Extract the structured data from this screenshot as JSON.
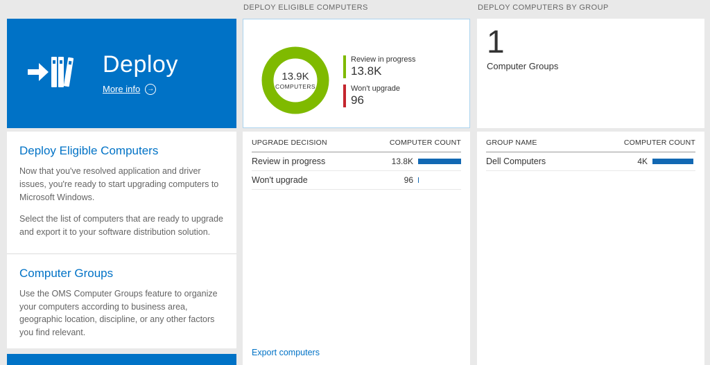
{
  "colors": {
    "tile_blue": "#0072c6",
    "bar_blue": "#1268b3",
    "review_green": "#7fba00",
    "wont_upgrade_red": "#c4262e",
    "card_border_blue": "#abd3ee"
  },
  "left_panel": {
    "tile": {
      "title": "Deploy",
      "more_info_label": "More info"
    },
    "sections": [
      {
        "heading": "Deploy Eligible Computers",
        "paragraphs": [
          "Now that you've resolved application and driver issues, you're ready to start upgrading computers to Microsoft Windows.",
          "Select the list of computers that are ready to upgrade and export it to your software distribution solution."
        ]
      },
      {
        "heading": "Computer Groups",
        "paragraphs": [
          "Use the OMS Computer Groups feature to organize your computers according to business area, geographic location, discipline, or any other factors you find relevant."
        ]
      }
    ]
  },
  "eligible": {
    "header": "DEPLOY ELIGIBLE COMPUTERS",
    "donut": {
      "center_value": "13.9K",
      "center_label": "COMPUTERS",
      "legend": [
        {
          "label": "Review in progress",
          "value": "13.8K",
          "color": "#7fba00"
        },
        {
          "label": "Won't upgrade",
          "value": "96",
          "color": "#c4262e"
        }
      ]
    },
    "table": {
      "col1": "UPGRADE DECISION",
      "col2": "COMPUTER COUNT",
      "rows": [
        {
          "label": "Review in progress",
          "value": "13.8K",
          "bar_pct": 100
        },
        {
          "label": "Won't upgrade",
          "value": "96",
          "bar_pct": 2
        }
      ]
    },
    "export_label": "Export computers"
  },
  "groups": {
    "header": "DEPLOY COMPUTERS BY GROUP",
    "count": "1",
    "count_label": "Computer Groups",
    "table": {
      "col1": "GROUP NAME",
      "col2": "COMPUTER COUNT",
      "rows": [
        {
          "label": "Dell Computers",
          "value": "4K",
          "bar_pct": 95
        }
      ]
    }
  },
  "chart_data": {
    "type": "pie",
    "title": "Deploy Eligible Computers",
    "center_value": "13.9K",
    "center_label": "COMPUTERS",
    "slices": [
      {
        "label": "Review in progress",
        "value": 13800,
        "display": "13.8K",
        "color": "#7fba00"
      },
      {
        "label": "Won't upgrade",
        "value": 96,
        "display": "96",
        "color": "#c4262e"
      }
    ]
  }
}
